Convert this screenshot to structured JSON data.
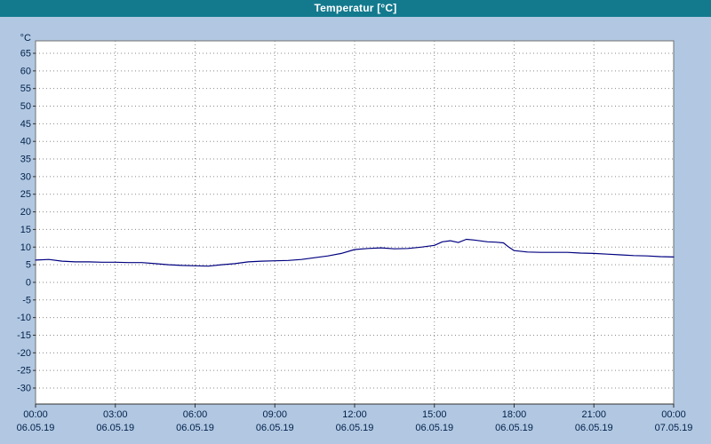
{
  "window": {
    "title": "Temperatur [°C]"
  },
  "colors": {
    "background": "#b2c8e2",
    "titlebar": "#137a8e",
    "title_text": "#ffffff",
    "plot_bg": "#ffffff",
    "plot_border": "#707070",
    "grid": "#8a8a8a",
    "axis_line": "#303030",
    "axis_text": "#00204a",
    "line": "#000080"
  },
  "chart_data": {
    "type": "line",
    "title": "Temperatur [°C]",
    "xlabel": "",
    "ylabel": "°C",
    "ylim": [
      -30,
      65
    ],
    "ytick_step": 5,
    "y_ticks": [
      65,
      60,
      55,
      50,
      45,
      40,
      35,
      30,
      25,
      20,
      15,
      10,
      5,
      0,
      -5,
      -10,
      -15,
      -20,
      -25,
      -30
    ],
    "grid": true,
    "grid_style": "dashed",
    "legend_position": "none",
    "x_axis": {
      "unit": "hours",
      "range": [
        0,
        24
      ],
      "ticks": [
        {
          "hour": 0,
          "time": "00:00",
          "date": "06.05.19"
        },
        {
          "hour": 3,
          "time": "03:00",
          "date": "06.05.19"
        },
        {
          "hour": 6,
          "time": "06:00",
          "date": "06.05.19"
        },
        {
          "hour": 9,
          "time": "09:00",
          "date": "06.05.19"
        },
        {
          "hour": 12,
          "time": "12:00",
          "date": "06.05.19"
        },
        {
          "hour": 15,
          "time": "15:00",
          "date": "06.05.19"
        },
        {
          "hour": 18,
          "time": "18:00",
          "date": "06.05.19"
        },
        {
          "hour": 21,
          "time": "21:00",
          "date": "06.05.19"
        },
        {
          "hour": 24,
          "time": "00:00",
          "date": "07.05.19"
        }
      ]
    },
    "series": [
      {
        "name": "Temperatur",
        "color": "#000080",
        "x": [
          0,
          0.5,
          1,
          1.5,
          2,
          2.5,
          3,
          3.5,
          4,
          4.5,
          5,
          5.5,
          6,
          6.5,
          7,
          7.5,
          8,
          8.5,
          9,
          9.5,
          10,
          10.5,
          11,
          11.5,
          12,
          12.5,
          13,
          13.5,
          14,
          14.5,
          15,
          15.3,
          15.6,
          15.9,
          16.2,
          16.5,
          17,
          17.3,
          17.6,
          17.8,
          18,
          18.5,
          19,
          19.5,
          20,
          20.5,
          21,
          21.5,
          22,
          22.5,
          23,
          23.5,
          24
        ],
        "values": [
          6.3,
          6.5,
          6.0,
          5.8,
          5.8,
          5.7,
          5.7,
          5.6,
          5.6,
          5.3,
          5.0,
          4.8,
          4.7,
          4.6,
          5.0,
          5.3,
          5.8,
          6.0,
          6.1,
          6.2,
          6.5,
          7.0,
          7.5,
          8.2,
          9.3,
          9.6,
          9.8,
          9.5,
          9.6,
          10.0,
          10.5,
          11.5,
          11.8,
          11.3,
          12.2,
          12.0,
          11.5,
          11.4,
          11.2,
          10.0,
          9.0,
          8.6,
          8.5,
          8.5,
          8.5,
          8.3,
          8.2,
          8.0,
          7.8,
          7.6,
          7.5,
          7.3,
          7.2
        ]
      }
    ]
  }
}
